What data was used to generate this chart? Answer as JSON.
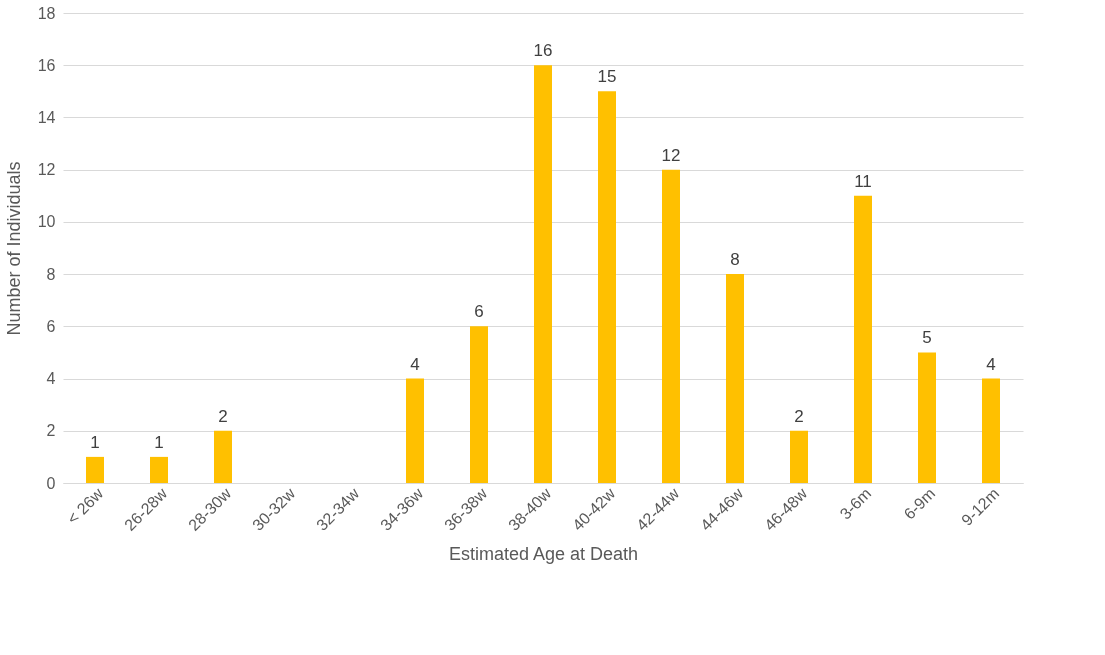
{
  "chart_data": {
    "type": "bar",
    "xlabel": "Estimated Age at Death",
    "ylabel": "Number of Individuals",
    "categories": [
      "< 26w",
      "26-28w",
      "28-30w",
      "30-32w",
      "32-34w",
      "34-36w",
      "36-38w",
      "38-40w",
      "40-42w",
      "42-44w",
      "44-46w",
      "46-48w",
      "3-6m",
      "6-9m",
      "9-12m"
    ],
    "values": [
      1,
      1,
      2,
      0,
      0,
      4,
      6,
      16,
      15,
      12,
      8,
      2,
      11,
      5,
      4
    ],
    "value_labels": [
      "1",
      "1",
      "2",
      null,
      null,
      "4",
      "6",
      "16",
      "15",
      "12",
      "8",
      "2",
      "11",
      "5",
      "4"
    ],
    "color": "#ffc000",
    "ylim": [
      0,
      18
    ],
    "yticks": [
      0,
      2,
      4,
      6,
      8,
      10,
      12,
      14,
      16,
      18
    ],
    "grid": "y"
  }
}
